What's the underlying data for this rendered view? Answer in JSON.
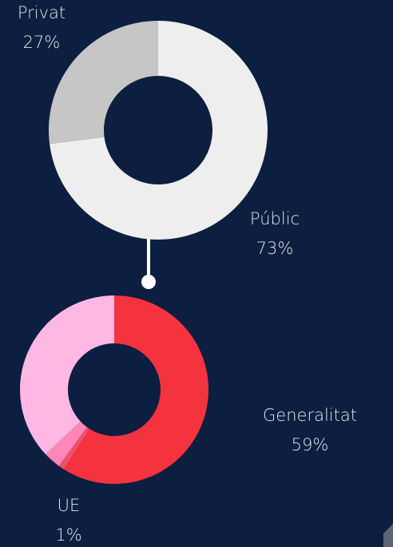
{
  "chart_data": [
    {
      "type": "donut",
      "categories": [
        "Públic",
        "Privat"
      ],
      "values": [
        73,
        27
      ],
      "value_labels": [
        "73%",
        "27%"
      ],
      "colors": [
        "#eeeeee",
        "#c6c6c6"
      ]
    },
    {
      "type": "donut",
      "categories": [
        "Generalitat",
        "UE",
        null,
        null
      ],
      "values": [
        59,
        1,
        3,
        37
      ],
      "value_labels": [
        "59%",
        "1%",
        null,
        null
      ],
      "colors": [
        "#f5333f",
        "#f0506e",
        "#ff86b8",
        "#ffb8e4"
      ]
    }
  ]
}
